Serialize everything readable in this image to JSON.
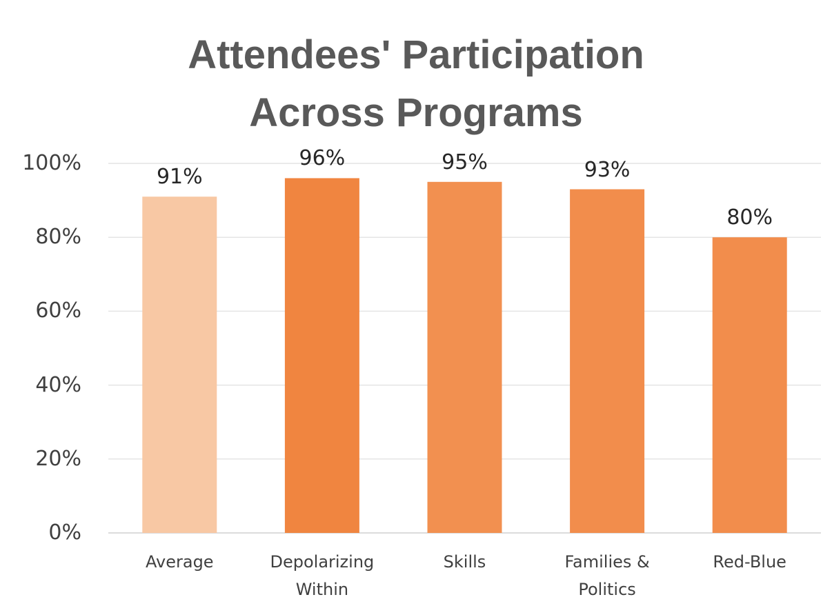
{
  "chart_data": {
    "type": "bar",
    "title": "Attendees' Participation Across Programs",
    "categories": [
      "Average",
      "Depolarizing Within",
      "Skills",
      "Families & Politics",
      "Red-Blue"
    ],
    "values": [
      91,
      96,
      95,
      93,
      80
    ],
    "value_labels": [
      "91%",
      "96%",
      "95%",
      "93%",
      "80%"
    ],
    "colors": [
      "#f8c8a4",
      "#f08540",
      "#f29050",
      "#f28d4c",
      "#f28d4c"
    ],
    "ylim": [
      0,
      100
    ],
    "yticks": [
      {
        "value": 0,
        "label": "0%"
      },
      {
        "value": 20,
        "label": "20%"
      },
      {
        "value": 40,
        "label": "40%"
      },
      {
        "value": 60,
        "label": "60%"
      },
      {
        "value": 80,
        "label": "80%"
      },
      {
        "value": 100,
        "label": "100%"
      }
    ],
    "grid": true
  }
}
